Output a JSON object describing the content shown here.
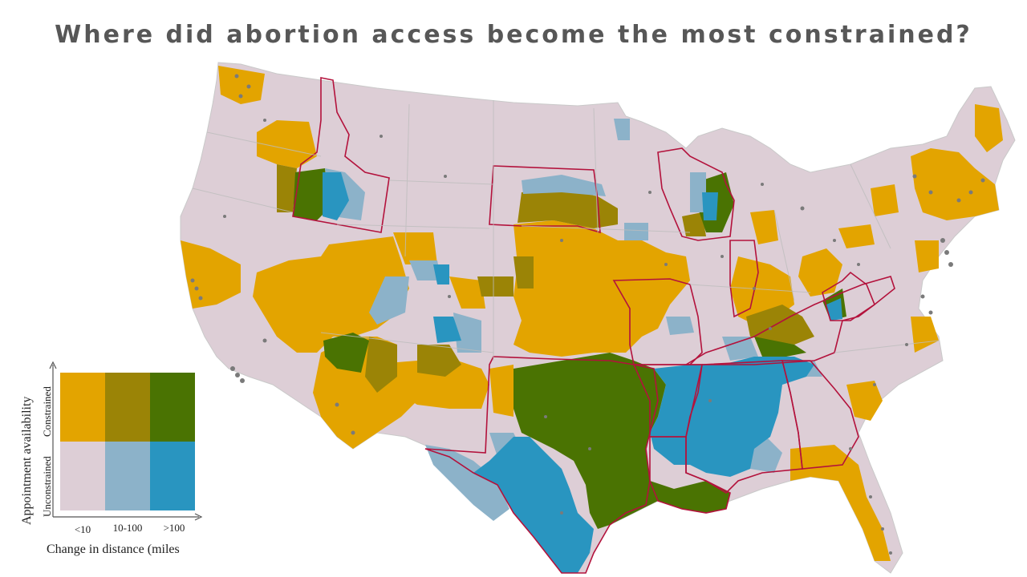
{
  "title": "Where did abortion access become the most constrained?",
  "colors": {
    "unconstrained_low": "#ddced6",
    "unconstrained_mid": "#8cb2c9",
    "unconstrained_high": "#2995c0",
    "constrained_low": "#e3a400",
    "constrained_mid": "#9b8406",
    "constrained_high": "#4a7302",
    "state_border_restricted": "#b3123c",
    "facility_dot": "#7a7a7a",
    "base_land": "#ddced6"
  },
  "legend": {
    "y_axis_title": "Appointment availability",
    "y_constrained": "Constrained",
    "y_unconstrained": "Unconstrained",
    "x_ticks": [
      "<10",
      "10-100",
      ">100"
    ],
    "x_axis_title": "Change in distance (miles"
  }
}
